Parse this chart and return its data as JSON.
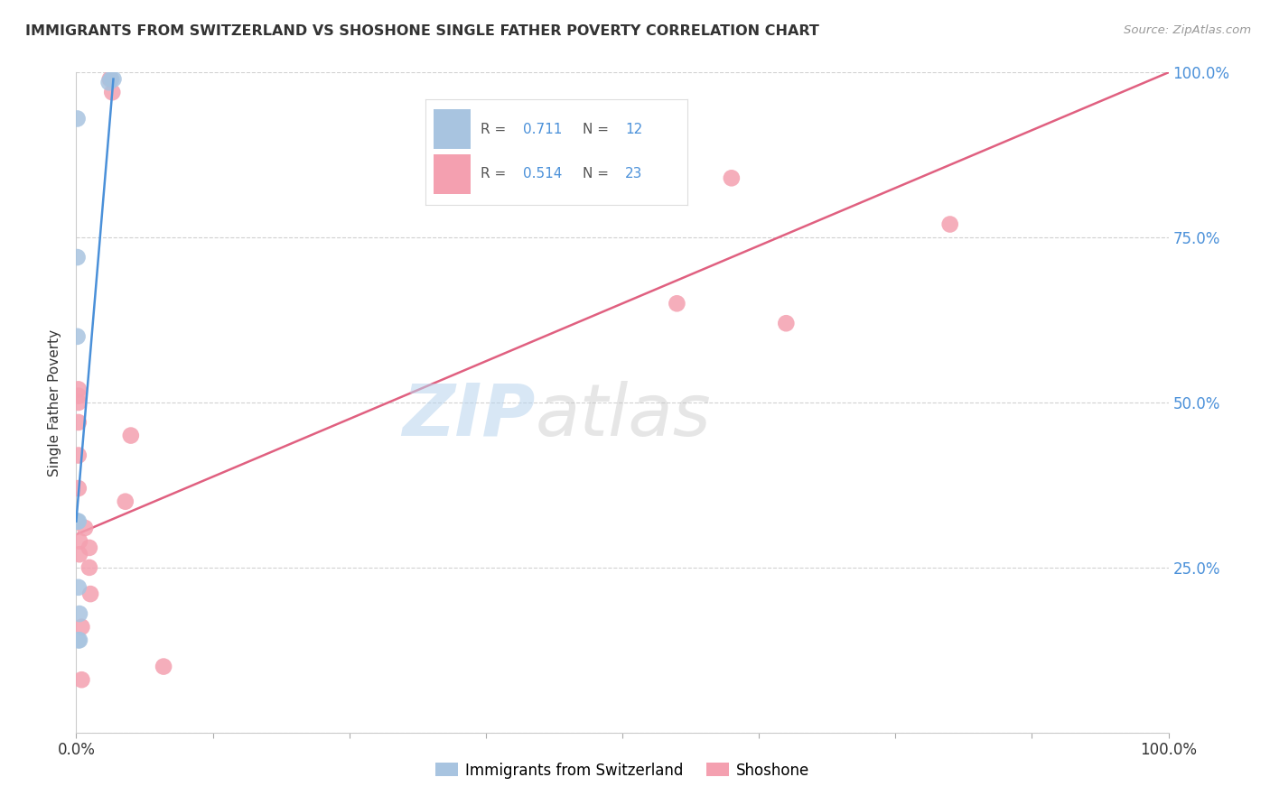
{
  "title": "IMMIGRANTS FROM SWITZERLAND VS SHOSHONE SINGLE FATHER POVERTY CORRELATION CHART",
  "source": "Source: ZipAtlas.com",
  "ylabel": "Single Father Poverty",
  "legend_label1": "Immigrants from Switzerland",
  "legend_label2": "Shoshone",
  "legend_r1": "0.711",
  "legend_n1": "12",
  "legend_r2": "0.514",
  "legend_n2": "23",
  "watermark_zip": "ZIP",
  "watermark_atlas": "atlas",
  "blue_color": "#a8c4e0",
  "pink_color": "#f4a0b0",
  "line_blue": "#4a90d9",
  "line_pink": "#e06080",
  "swiss_x": [
    0.001,
    0.03,
    0.032,
    0.034,
    0.001,
    0.001,
    0.001,
    0.002,
    0.002,
    0.003,
    0.003,
    0.002
  ],
  "swiss_y": [
    0.93,
    0.985,
    0.99,
    0.99,
    0.72,
    0.6,
    0.32,
    0.32,
    0.22,
    0.18,
    0.14,
    0.14
  ],
  "shoshone_x": [
    0.031,
    0.033,
    0.002,
    0.002,
    0.002,
    0.002,
    0.002,
    0.002,
    0.003,
    0.003,
    0.045,
    0.05,
    0.6,
    0.8,
    0.65,
    0.55,
    0.008,
    0.012,
    0.012,
    0.013,
    0.08,
    0.005,
    0.005
  ],
  "shoshone_y": [
    0.99,
    0.97,
    0.52,
    0.51,
    0.5,
    0.47,
    0.42,
    0.37,
    0.29,
    0.27,
    0.35,
    0.45,
    0.84,
    0.77,
    0.62,
    0.65,
    0.31,
    0.28,
    0.25,
    0.21,
    0.1,
    0.08,
    0.16
  ],
  "xlim": [
    0,
    1
  ],
  "ylim": [
    0,
    1
  ],
  "xticks": [
    0,
    0.125,
    0.25,
    0.375,
    0.5,
    0.625,
    0.75,
    0.875,
    1.0
  ],
  "xticklabels_show": {
    "0": "0.0%",
    "1.0": "100.0%"
  },
  "yticks": [
    0,
    0.25,
    0.5,
    0.75,
    1.0
  ],
  "yticklabels_right": [
    "",
    "25.0%",
    "50.0%",
    "75.0%",
    "100.0%"
  ],
  "blue_line_x": [
    0.0,
    0.034
  ],
  "blue_line_y": [
    0.32,
    0.99
  ],
  "pink_line_x": [
    0.0,
    1.0
  ],
  "pink_line_y": [
    0.3,
    1.0
  ],
  "background": "#ffffff",
  "grid_color": "#cccccc",
  "tick_color": "#4a90d9",
  "title_color": "#333333",
  "source_color": "#999999"
}
